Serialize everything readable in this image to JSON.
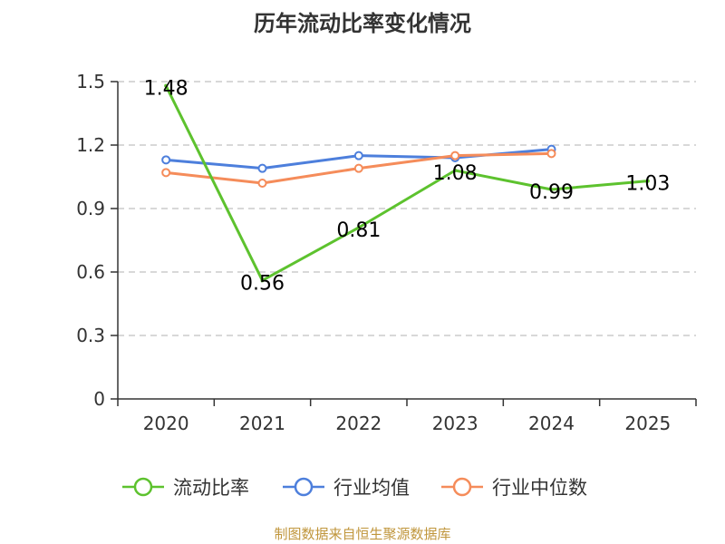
{
  "chart_data": {
    "type": "line",
    "title": "历年流动比率变化情况",
    "categories": [
      "2020",
      "2021",
      "2022",
      "2023",
      "2024",
      "2025"
    ],
    "ylim": [
      0,
      1.5
    ],
    "yticks": [
      0,
      0.3,
      0.6,
      0.9,
      1.2,
      1.5
    ],
    "ytick_labels": [
      "0",
      "0.3",
      "0.6",
      "0.9",
      "1.2",
      "1.5"
    ],
    "grid": true,
    "legend_position": "bottom",
    "series": [
      {
        "name": "流动比率",
        "color": "#5dc22e",
        "values": [
          1.48,
          0.56,
          0.81,
          1.08,
          0.99,
          1.03
        ],
        "labels": [
          "1.48",
          "0.56",
          "0.81",
          "1.08",
          "0.99",
          "1.03"
        ]
      },
      {
        "name": "行业均值",
        "color": "#4d7fdc",
        "values": [
          1.13,
          1.09,
          1.15,
          1.14,
          1.18,
          null
        ]
      },
      {
        "name": "行业中位数",
        "color": "#f58c5a",
        "values": [
          1.07,
          1.02,
          1.09,
          1.15,
          1.16,
          null
        ]
      }
    ]
  },
  "source_text": "制图数据来自恒生聚源数据库"
}
